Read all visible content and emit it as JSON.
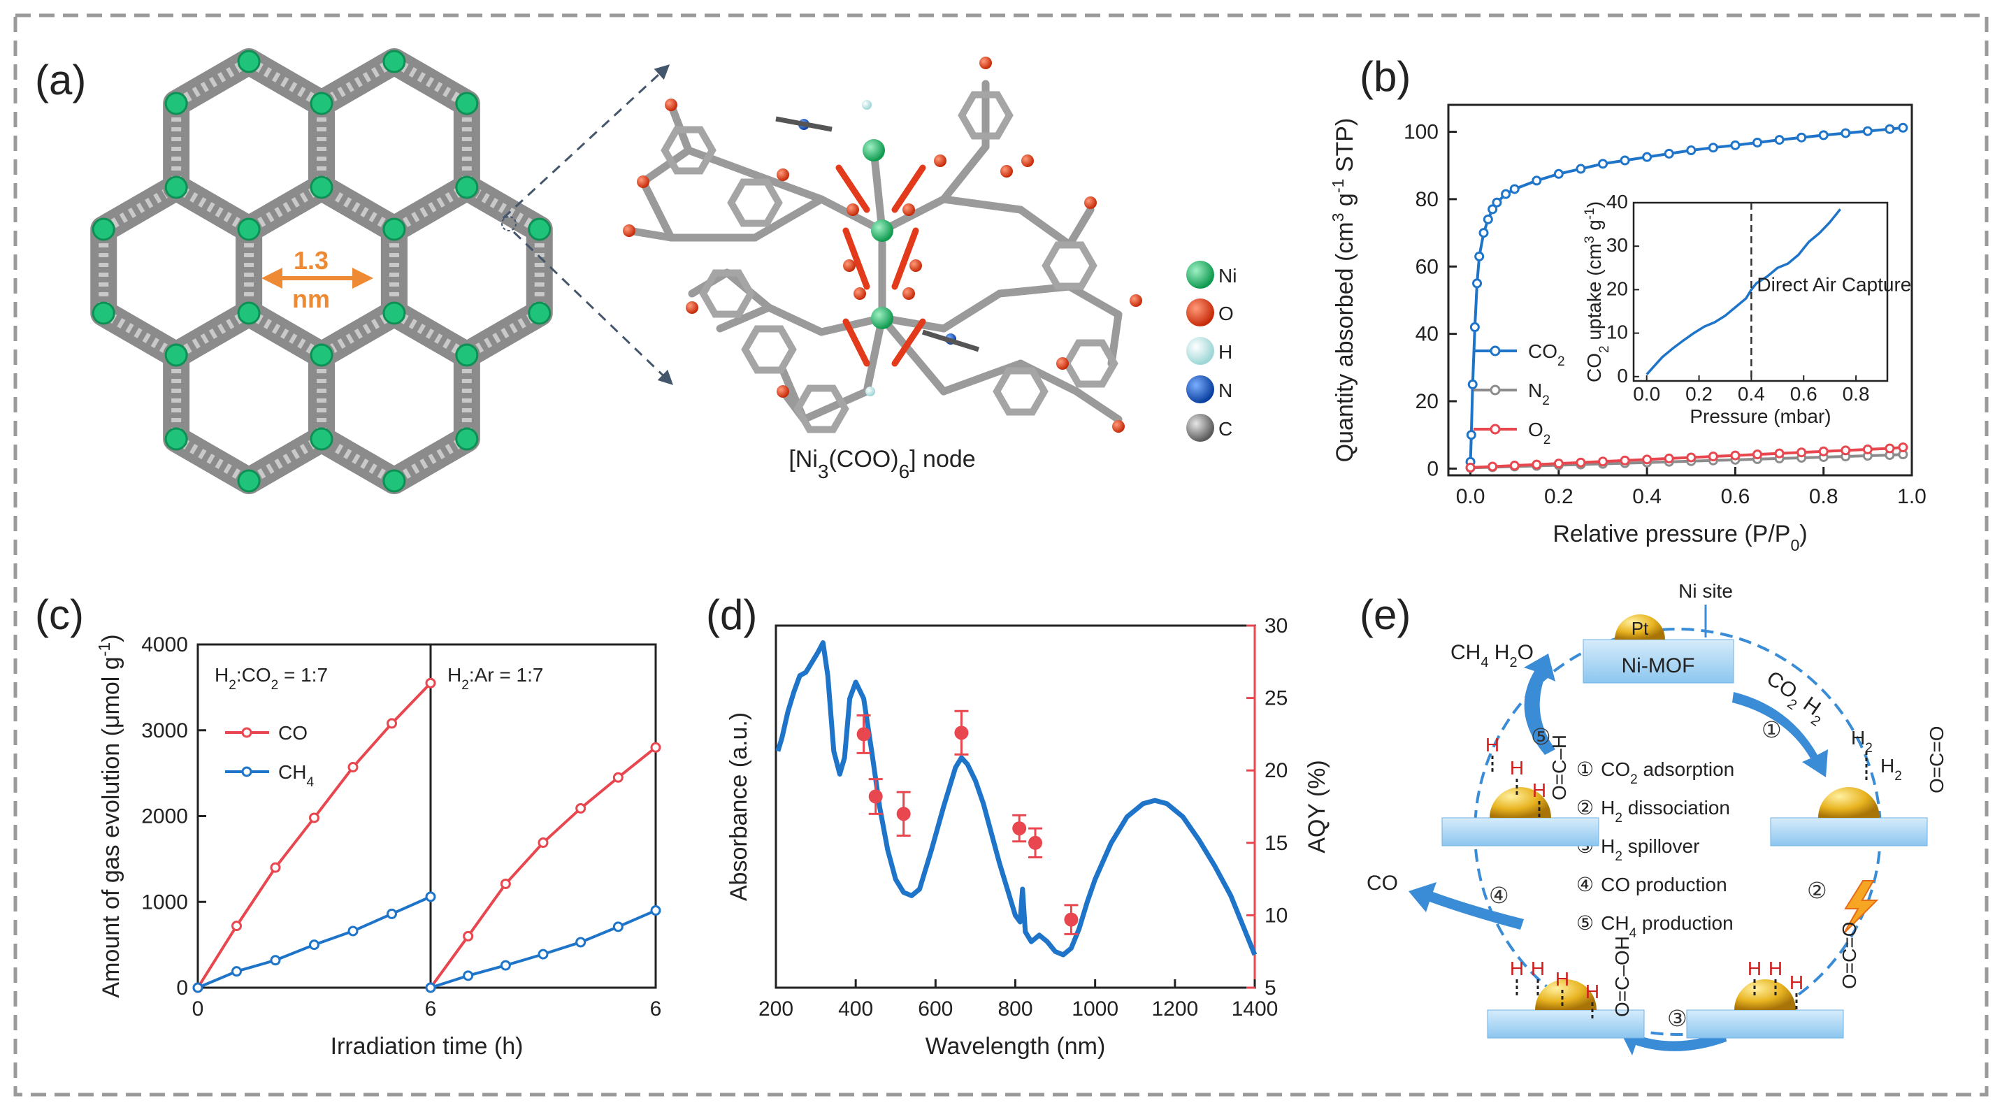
{
  "panels": {
    "a": {
      "letter": "(a)",
      "pore_size": [
        "1.3",
        "nm"
      ],
      "node_label_pre": "[Ni",
      "node_sub1": "3",
      "node_label_mid": "(COO)",
      "node_sub2": "6",
      "node_label_post": "] node",
      "atoms": [
        {
          "label": "Ni",
          "color": "#1fbf6a"
        },
        {
          "label": "O",
          "color": "#e8401c"
        },
        {
          "label": "H",
          "color": "#c8ecec"
        },
        {
          "label": "N",
          "color": "#1d5fd0"
        },
        {
          "label": "C",
          "color": "#8a8a8a"
        }
      ]
    },
    "b": {
      "letter": "(b)"
    },
    "c": {
      "letter": "(c)"
    },
    "d": {
      "letter": "(d)"
    },
    "e": {
      "letter": "(e)",
      "ni_site": "Ni site",
      "pt": "Pt",
      "ni_mof": "Ni-MOF",
      "ch4_h2o": [
        "CH",
        "4",
        " H",
        "2",
        "O"
      ],
      "co2_h2": [
        "CO",
        "2",
        " H",
        "2"
      ],
      "co_out": "CO",
      "steps": [
        {
          "num": "①",
          "text": "CO",
          "sub": "2",
          "rest": " adsorption"
        },
        {
          "num": "②",
          "text": "H",
          "sub": "2",
          "rest": " dissociation"
        },
        {
          "num": "③",
          "text": "H",
          "sub": "2",
          "rest": " spillover"
        },
        {
          "num": "④",
          "text": "CO production",
          "sub": "",
          "rest": ""
        },
        {
          "num": "⑤",
          "text": "CH",
          "sub": "4",
          "rest": " production"
        }
      ],
      "arrow_nums": [
        "①",
        "②",
        "③",
        "④",
        "⑤"
      ]
    }
  },
  "chart_data": [
    {
      "id": "b",
      "type": "line",
      "xlabel": "Relative pressure (P/P0)",
      "ylabel": "Quantity absorbed (cm3 g-1 STP)",
      "xlim": [
        -0.05,
        1.0
      ],
      "ylim": [
        -2,
        108
      ],
      "xticks": [
        0.0,
        0.2,
        0.4,
        0.6,
        0.8,
        1.0
      ],
      "xtick_labels": [
        "0.0",
        "0.2",
        "0.4",
        "0.6",
        "0.8",
        "1.0"
      ],
      "yticks": [
        0,
        20,
        40,
        60,
        80,
        100
      ],
      "series": [
        {
          "name": "CO2",
          "color": "#1e74c8",
          "x": [
            0.0,
            0.002,
            0.005,
            0.01,
            0.015,
            0.02,
            0.03,
            0.04,
            0.05,
            0.06,
            0.08,
            0.1,
            0.15,
            0.2,
            0.25,
            0.3,
            0.35,
            0.4,
            0.45,
            0.5,
            0.55,
            0.6,
            0.65,
            0.7,
            0.75,
            0.8,
            0.85,
            0.9,
            0.95,
            0.98
          ],
          "y": [
            2,
            10,
            25,
            42,
            55,
            63,
            70,
            74,
            77,
            79,
            81.5,
            83,
            85.5,
            87.5,
            89,
            90.5,
            91.5,
            92.5,
            93.5,
            94.5,
            95.3,
            96,
            96.8,
            97.6,
            98.3,
            99,
            99.6,
            100.2,
            100.8,
            101.2
          ]
        },
        {
          "name": "N2",
          "color": "#8c8c8c",
          "x": [
            0.0,
            0.05,
            0.1,
            0.15,
            0.2,
            0.25,
            0.3,
            0.35,
            0.4,
            0.45,
            0.5,
            0.55,
            0.6,
            0.65,
            0.7,
            0.75,
            0.8,
            0.85,
            0.9,
            0.95,
            0.98
          ],
          "y": [
            0.2,
            0.4,
            0.6,
            0.8,
            1.0,
            1.2,
            1.4,
            1.6,
            1.8,
            2.0,
            2.2,
            2.4,
            2.6,
            2.8,
            3.0,
            3.2,
            3.4,
            3.6,
            3.8,
            4.0,
            4.2
          ]
        },
        {
          "name": "O2",
          "color": "#e8474f",
          "x": [
            0.0,
            0.05,
            0.1,
            0.15,
            0.2,
            0.25,
            0.3,
            0.35,
            0.4,
            0.45,
            0.5,
            0.55,
            0.6,
            0.65,
            0.7,
            0.75,
            0.8,
            0.85,
            0.9,
            0.95,
            0.98
          ],
          "y": [
            0.3,
            0.6,
            0.9,
            1.2,
            1.5,
            1.8,
            2.1,
            2.4,
            2.7,
            3.0,
            3.3,
            3.6,
            3.9,
            4.2,
            4.5,
            4.8,
            5.1,
            5.4,
            5.7,
            6.0,
            6.3
          ]
        }
      ],
      "inset": {
        "xlabel": "Pressure (mbar)",
        "ylabel": "CO2 uptake (cm3 g-1)",
        "xlim": [
          -0.05,
          0.92
        ],
        "ylim": [
          -1,
          40
        ],
        "xticks": [
          0.0,
          0.2,
          0.4,
          0.6,
          0.8
        ],
        "xtick_labels": [
          "0.0",
          "0.2",
          "0.4",
          "0.6",
          "0.8"
        ],
        "yticks": [
          0,
          10,
          20,
          30,
          40
        ],
        "annotation": "Direct Air Capture",
        "marker_x": 0.4,
        "x": [
          0.0,
          0.03,
          0.06,
          0.1,
          0.14,
          0.18,
          0.22,
          0.26,
          0.3,
          0.34,
          0.38,
          0.4,
          0.42,
          0.46,
          0.5,
          0.54,
          0.58,
          0.62,
          0.66,
          0.7,
          0.74
        ],
        "y": [
          0.5,
          2.5,
          4.5,
          6.5,
          8.3,
          10,
          11.5,
          12.5,
          14,
          16,
          18,
          20,
          21.5,
          23,
          25,
          26,
          28,
          31,
          33,
          35.5,
          38.5
        ]
      }
    },
    {
      "id": "c",
      "type": "line",
      "xlabel": "Irradiation time (h)",
      "ylabel": "Amount of gas evolution (μmol g-1)",
      "ylim": [
        0,
        4000
      ],
      "yticks": [
        0,
        1000,
        2000,
        3000,
        4000
      ],
      "xtick_labels": [
        "0",
        "6",
        "6"
      ],
      "subplots": [
        {
          "title": "H2:CO2 = 1:7",
          "x": [
            0,
            1,
            2,
            3,
            4,
            5,
            6
          ],
          "series": [
            {
              "name": "CO",
              "color": "#e8474f",
              "values": [
                0,
                720,
                1400,
                1980,
                2570,
                3080,
                3550
              ]
            },
            {
              "name": "CH4",
              "color": "#1e74c8",
              "values": [
                0,
                190,
                320,
                500,
                660,
                860,
                1060
              ]
            }
          ]
        },
        {
          "title": "H2:Ar = 1:7",
          "x": [
            0,
            1,
            2,
            3,
            4,
            5,
            6
          ],
          "series": [
            {
              "name": "CO",
              "color": "#e8474f",
              "values": [
                0,
                600,
                1210,
                1690,
                2090,
                2450,
                2800
              ]
            },
            {
              "name": "CH4",
              "color": "#1e74c8",
              "values": [
                0,
                140,
                260,
                390,
                530,
                710,
                900
              ]
            }
          ]
        }
      ]
    },
    {
      "id": "d",
      "type": "line",
      "xlabel": "Wavelength (nm)",
      "ylabel_left": "Absorbance (a.u.)",
      "ylabel_right": "AQY (%)",
      "xlim": [
        200,
        1400
      ],
      "xticks": [
        200,
        400,
        600,
        800,
        1000,
        1200,
        1400
      ],
      "right_ylim": [
        5,
        30
      ],
      "right_yticks": [
        5,
        10,
        15,
        20,
        25,
        30
      ],
      "absorbance": {
        "color": "#1e74c8",
        "x": [
          205,
          215,
          230,
          245,
          260,
          275,
          290,
          305,
          318,
          330,
          345,
          360,
          372,
          385,
          400,
          420,
          440,
          460,
          480,
          500,
          520,
          540,
          560,
          590,
          620,
          650,
          665,
          680,
          700,
          720,
          740,
          760,
          780,
          800,
          812,
          818,
          825,
          840,
          860,
          880,
          900,
          920,
          940,
          960,
          980,
          1000,
          1040,
          1080,
          1120,
          1150,
          1180,
          1220,
          1260,
          1300,
          1340,
          1380,
          1400
        ],
        "y": [
          0.72,
          0.76,
          0.84,
          0.9,
          0.95,
          0.96,
          0.99,
          1.02,
          1.05,
          0.95,
          0.72,
          0.65,
          0.7,
          0.88,
          0.93,
          0.88,
          0.72,
          0.55,
          0.42,
          0.33,
          0.29,
          0.28,
          0.3,
          0.42,
          0.55,
          0.67,
          0.7,
          0.68,
          0.63,
          0.56,
          0.47,
          0.38,
          0.3,
          0.22,
          0.2,
          0.3,
          0.17,
          0.14,
          0.16,
          0.14,
          0.11,
          0.1,
          0.12,
          0.18,
          0.26,
          0.33,
          0.44,
          0.52,
          0.56,
          0.57,
          0.56,
          0.52,
          0.45,
          0.37,
          0.28,
          0.16,
          0.1
        ]
      },
      "aqy": {
        "color": "#e8474f",
        "x": [
          420,
          450,
          520,
          665,
          810,
          850,
          940
        ],
        "y": [
          22.5,
          18.2,
          17.0,
          22.6,
          16.0,
          15.0,
          9.7
        ],
        "err": [
          1.3,
          1.2,
          1.5,
          1.5,
          0.9,
          1.0,
          1.0
        ]
      }
    }
  ]
}
